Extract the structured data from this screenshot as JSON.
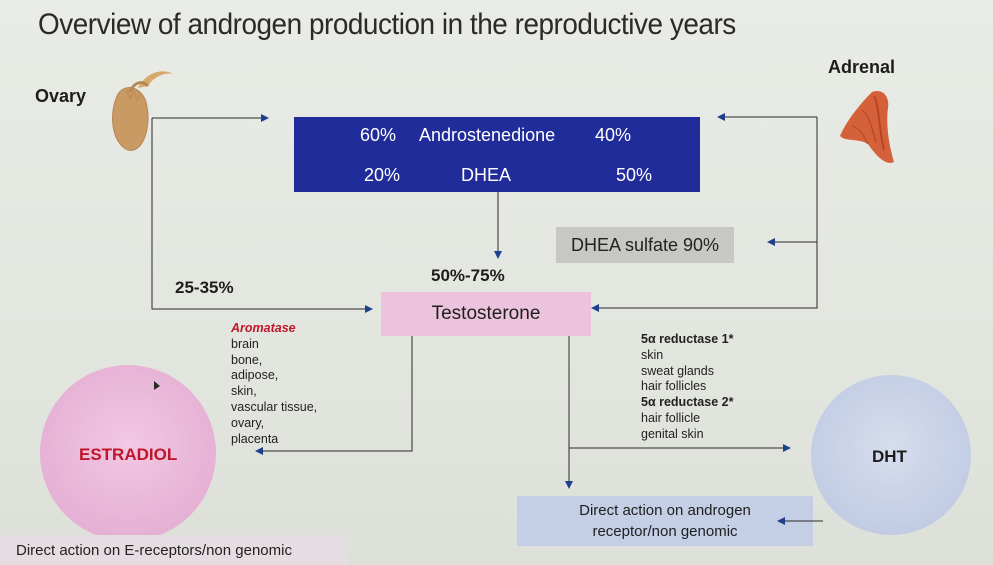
{
  "title": "Overview of androgen production in the reproductive years",
  "sources": {
    "ovary_label": "Ovary",
    "adrenal_label": "Adrenal"
  },
  "precursor_box": {
    "androstenedione": {
      "ovary_pct": "60%",
      "name": "Androstenedione",
      "adrenal_pct": "40%"
    },
    "dhea": {
      "ovary_pct": "20%",
      "name": "DHEA",
      "adrenal_pct": "50%"
    }
  },
  "dhea_sulfate": "DHEA sulfate 90%",
  "ovary_direct_pct": "25-35%",
  "conversion_pct": "50%-75%",
  "testosterone": "Testosterone",
  "aromatase": {
    "heading": "Aromatase",
    "sites": [
      "brain",
      "bone,",
      "adipose,",
      "skin,",
      "vascular tissue,",
      "ovary,",
      "placenta"
    ]
  },
  "reductase": {
    "type1_heading": "5α reductase 1*",
    "type1_sites": [
      "skin",
      "sweat glands",
      "hair follicles"
    ],
    "type2_heading": "5α reductase 2*",
    "type2_sites": [
      "hair follicle",
      "genital skin"
    ]
  },
  "estradiol": "ESTRADIOL",
  "dht": "DHT",
  "androgen_action": {
    "line1": "Direct action on androgen",
    "line2": "receptor/non genomic"
  },
  "estrogen_action": "Direct action on E-receptors/non genomic",
  "colors": {
    "precursor_box": "#1f2c9a",
    "testosterone_box": "#ecc3dc",
    "dhea_sulfate_box": "#c7c7c4",
    "androgen_action_box": "#c4cfe6",
    "estradiol_circle": "#e8b9da",
    "dht_circle": "#c9d2e6",
    "estradiol_text": "#c0152b",
    "aromatase_text": "#c0152b",
    "arrow": "#1e3f8c"
  },
  "icons": {
    "ovary": "ovary-illustration",
    "adrenal": "adrenal-gland-illustration"
  }
}
